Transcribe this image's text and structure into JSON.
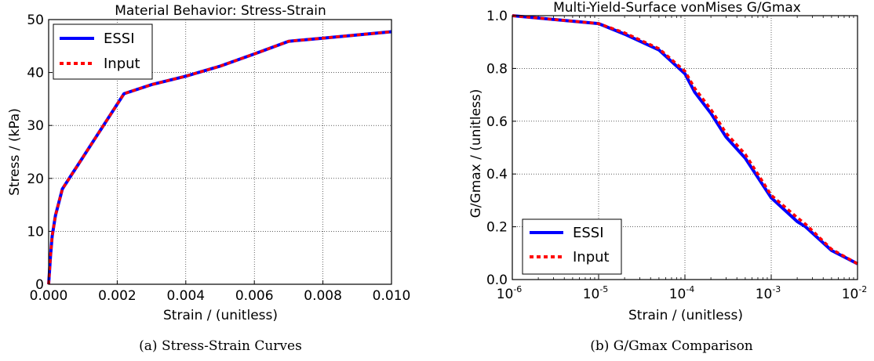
{
  "chart_data": [
    {
      "type": "line",
      "title": "Material Behavior: Stress-Strain",
      "xlabel": "Strain / (unitless)",
      "ylabel": "Stress / (kPa)",
      "caption": "(a) Stress-Strain Curves",
      "xlim": [
        0,
        0.01
      ],
      "ylim": [
        0,
        50
      ],
      "xticks": [
        "0.000",
        "0.002",
        "0.004",
        "0.006",
        "0.008",
        "0.010"
      ],
      "yticks": [
        "0",
        "10",
        "20",
        "30",
        "40",
        "50"
      ],
      "grid": true,
      "legend_position": "upper-left",
      "series": [
        {
          "name": "ESSI",
          "color": "#0000ff",
          "style": "solid",
          "x": [
            0,
            5e-05,
            0.0001,
            0.0002,
            0.0004,
            0.0007,
            0.001,
            0.0015,
            0.0022,
            0.003,
            0.004,
            0.005,
            0.006,
            0.007,
            0.008,
            0.009,
            0.01
          ],
          "y": [
            0,
            5,
            9,
            13,
            18,
            21,
            24,
            29,
            36,
            37.7,
            39.3,
            41.2,
            43.5,
            45.9,
            46.5,
            47.1,
            47.7
          ]
        },
        {
          "name": "Input",
          "color": "#ff0000",
          "style": "dotted",
          "x": [
            0,
            5e-05,
            0.0001,
            0.0002,
            0.0004,
            0.0007,
            0.001,
            0.0015,
            0.0022,
            0.003,
            0.004,
            0.005,
            0.006,
            0.007,
            0.008,
            0.009,
            0.01
          ],
          "y": [
            0,
            5,
            9,
            13,
            18,
            21,
            24,
            29,
            36,
            37.7,
            39.3,
            41.2,
            43.5,
            45.9,
            46.5,
            47.1,
            47.7
          ]
        }
      ]
    },
    {
      "type": "line",
      "title": "Multi-Yield-Surface vonMises G/Gmax",
      "xlabel": "Strain / (unitless)",
      "ylabel": "G/Gmax / (unitless)",
      "caption": "(b) G/Gmax Comparison",
      "xscale": "log",
      "xlim": [
        1e-06,
        0.01
      ],
      "ylim": [
        0,
        1
      ],
      "xticks": [
        {
          "base": "10",
          "exp": "-6"
        },
        {
          "base": "10",
          "exp": "-5"
        },
        {
          "base": "10",
          "exp": "-4"
        },
        {
          "base": "10",
          "exp": "-3"
        },
        {
          "base": "10",
          "exp": "-2"
        }
      ],
      "yticks": [
        "0.0",
        "0.2",
        "0.4",
        "0.6",
        "0.8",
        "1.0"
      ],
      "grid": true,
      "legend_position": "lower-left",
      "series": [
        {
          "name": "ESSI",
          "color": "#0000ff",
          "style": "solid",
          "x": [
            1e-06,
            1e-05,
            2e-05,
            5e-05,
            0.0001,
            0.00013,
            0.0002,
            0.0003,
            0.0005,
            0.001,
            0.002,
            0.0025,
            0.005,
            0.01
          ],
          "y": [
            1.0,
            0.97,
            0.93,
            0.87,
            0.78,
            0.71,
            0.63,
            0.54,
            0.46,
            0.31,
            0.22,
            0.2,
            0.11,
            0.06
          ]
        },
        {
          "name": "Input",
          "color": "#ff0000",
          "style": "dotted",
          "x": [
            1e-06,
            1e-05,
            2e-05,
            5e-05,
            0.0001,
            0.00013,
            0.0002,
            0.0003,
            0.0005,
            0.001,
            0.002,
            0.0025,
            0.005,
            0.01
          ],
          "y": [
            1.0,
            0.97,
            0.935,
            0.875,
            0.79,
            0.725,
            0.645,
            0.555,
            0.475,
            0.32,
            0.235,
            0.21,
            0.115,
            0.06
          ]
        }
      ]
    }
  ]
}
